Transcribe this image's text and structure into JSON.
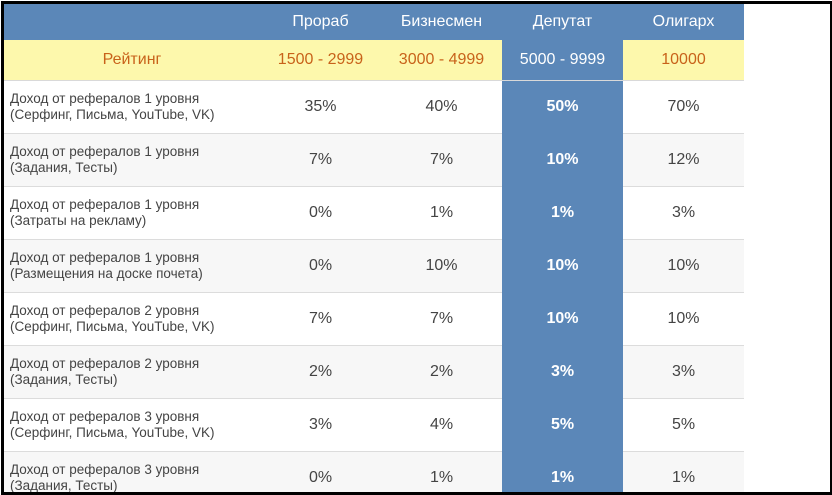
{
  "header": {
    "columns": [
      "",
      "Прораб",
      "Бизнесмен",
      "Депутат",
      "Олигарх"
    ]
  },
  "rating": {
    "label": "Рейтинг",
    "values": [
      "1500 - 2999",
      "3000 - 4999",
      "5000 - 9999",
      "10000"
    ]
  },
  "rows": [
    {
      "line1": "Доход от рефералов 1 уровня",
      "line2": "(Серфинг, Письма, YouTube, VK)",
      "values": [
        "35%",
        "40%",
        "50%",
        "70%"
      ]
    },
    {
      "line1": "Доход от рефералов 1 уровня",
      "line2": "(Задания, Тесты)",
      "values": [
        "7%",
        "7%",
        "10%",
        "12%"
      ]
    },
    {
      "line1": "Доход от рефералов 1 уровня",
      "line2": "(Затраты на рекламу)",
      "values": [
        "0%",
        "1%",
        "1%",
        "3%"
      ]
    },
    {
      "line1": "Доход от рефералов 1 уровня",
      "line2": "(Размещения на доске почета)",
      "values": [
        "0%",
        "10%",
        "10%",
        "10%"
      ]
    },
    {
      "line1": "Доход от рефералов 2 уровня",
      "line2": "(Серфинг, Письма, YouTube, VK)",
      "values": [
        "7%",
        "7%",
        "10%",
        "10%"
      ]
    },
    {
      "line1": "Доход от рефералов 2 уровня",
      "line2": "(Задания, Тесты)",
      "values": [
        "2%",
        "2%",
        "3%",
        "3%"
      ]
    },
    {
      "line1": "Доход от рефералов 3 уровня",
      "line2": "(Серфинг, Письма, YouTube, VK)",
      "values": [
        "3%",
        "4%",
        "5%",
        "5%"
      ]
    },
    {
      "line1": "Доход от рефералов 3 уровня",
      "line2": "(Задания, Тесты)",
      "values": [
        "0%",
        "1%",
        "1%",
        "1%"
      ]
    }
  ],
  "colors": {
    "header_bg": "#5b87b8",
    "highlight_column": "#5b87b8",
    "rating_bg": "#fdf8ac",
    "rating_text": "#c8621a"
  }
}
